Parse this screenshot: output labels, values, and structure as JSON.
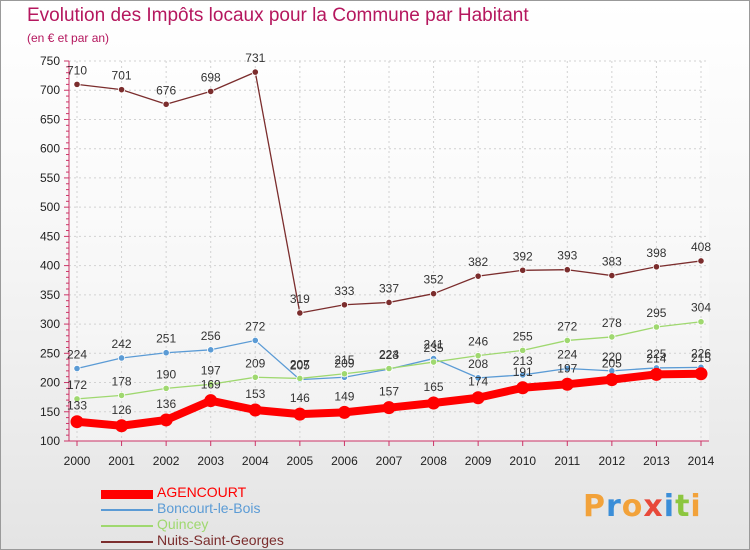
{
  "title": "Evolution des Impôts locaux pour la Commune par Habitant",
  "subtitle": "(en € et par an)",
  "logo_text": "Proxiti",
  "chart_data": {
    "type": "line",
    "title": "Evolution des Impôts locaux pour la Commune par Habitant",
    "subtitle": "(en € et par an)",
    "xlabel": "",
    "ylabel": "",
    "x": [
      "2000",
      "2001",
      "2002",
      "2003",
      "2004",
      "2005",
      "2006",
      "2007",
      "2008",
      "2009",
      "2010",
      "2011",
      "2012",
      "2013",
      "2014"
    ],
    "ylim": [
      100,
      750
    ],
    "yticks": [
      100,
      150,
      200,
      250,
      300,
      350,
      400,
      450,
      500,
      550,
      600,
      650,
      700,
      750
    ],
    "grid": true,
    "legend_position": "bottom-left",
    "series": [
      {
        "name": "AGENCOURT",
        "color": "#ff0000",
        "emphasis": true,
        "values": [
          133,
          126,
          136,
          169,
          153,
          146,
          149,
          157,
          165,
          174,
          191,
          197,
          205,
          214,
          215
        ],
        "labels": [
          "133",
          "126",
          "136",
          "169",
          "153",
          "146",
          "149",
          "157",
          "165",
          "174",
          "191",
          "197",
          "205",
          "214",
          "215"
        ]
      },
      {
        "name": "Boncourt-le-Bois",
        "color": "#5b9bd5",
        "values": [
          224,
          242,
          251,
          256,
          272,
          205,
          209,
          223,
          241,
          208,
          213,
          224,
          220,
          225,
          226
        ],
        "labels": [
          "224",
          "242",
          "251",
          "256",
          "272",
          "205",
          "209",
          "223",
          "241",
          "208",
          "213",
          "224",
          "220",
          "225",
          "226"
        ]
      },
      {
        "name": "Quincey",
        "color": "#9fd86f",
        "values": [
          172,
          178,
          190,
          197,
          209,
          207,
          215,
          224,
          235,
          246,
          255,
          272,
          278,
          295,
          304
        ],
        "labels": [
          "172",
          "178",
          "190",
          "197",
          "209",
          "207",
          "215",
          "224",
          "235",
          "246",
          "255",
          "272",
          "278",
          "295",
          "304"
        ]
      },
      {
        "name": "Nuits-Saint-Georges",
        "color": "#7b2d2d",
        "values": [
          710,
          701,
          676,
          698,
          731,
          319,
          333,
          337,
          352,
          382,
          392,
          393,
          383,
          398,
          408
        ],
        "labels": [
          "710",
          "701",
          "676",
          "698",
          "731",
          "319",
          "333",
          "337",
          "352",
          "382",
          "392",
          "393",
          "383",
          "398",
          "408"
        ]
      }
    ]
  }
}
